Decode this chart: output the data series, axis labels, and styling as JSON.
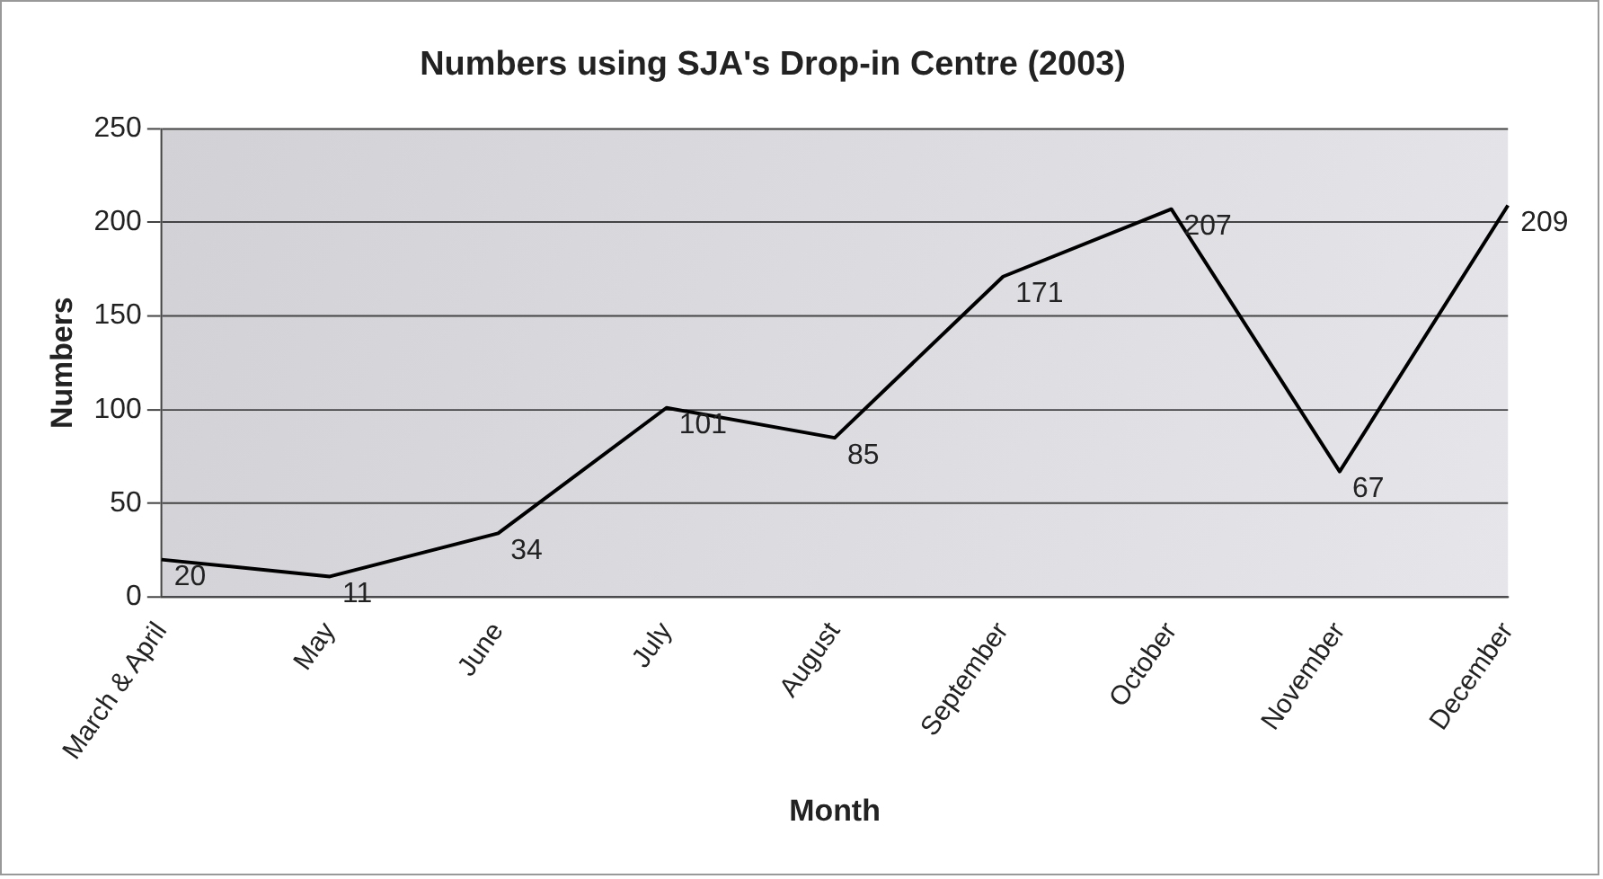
{
  "chart_data": {
    "type": "line",
    "title": "Numbers using SJA's Drop-in Centre (2003)",
    "xlabel": "Month",
    "ylabel": "Numbers",
    "categories": [
      "March & April",
      "May",
      "June",
      "July",
      "August",
      "September",
      "October",
      "November",
      "December"
    ],
    "series": [
      {
        "color": "#000000",
        "values": [
          20,
          11,
          34,
          101,
          85,
          171,
          207,
          67,
          209
        ]
      }
    ],
    "ylim": [
      0,
      250
    ],
    "yticks": [
      0,
      50,
      100,
      150,
      200,
      250
    ],
    "grid": "y",
    "legend": false,
    "marker": "none",
    "line_style": "solid",
    "data_labels": true
  }
}
